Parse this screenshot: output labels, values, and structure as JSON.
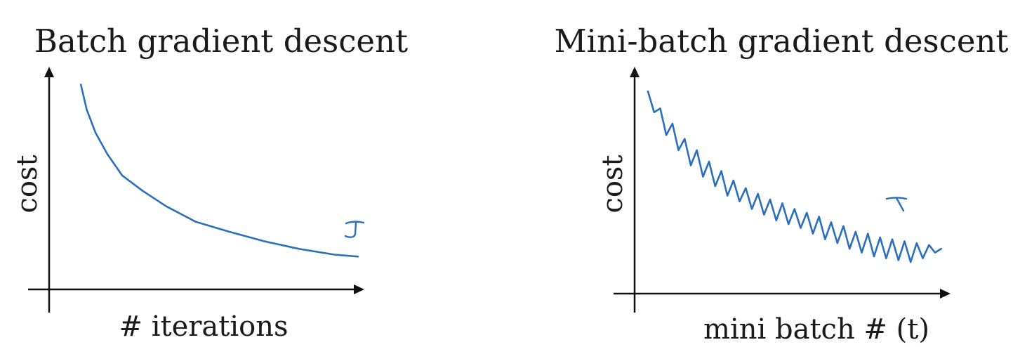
{
  "colors": {
    "curve": "#2a6fbd",
    "axis": "#111111",
    "text": "#1a1a1a"
  },
  "chart_data": [
    {
      "type": "line",
      "title": "Batch gradient descent",
      "xlabel": "# iterations",
      "ylabel": "cost",
      "xlim": [
        0,
        1
      ],
      "ylim": [
        0,
        1
      ],
      "grid": false,
      "annotation": "J",
      "series": [
        {
          "name": "J",
          "x": [
            0.06,
            0.08,
            0.11,
            0.15,
            0.2,
            0.27,
            0.35,
            0.45,
            0.56,
            0.68,
            0.8,
            0.92,
            1.0
          ],
          "y": [
            0.98,
            0.85,
            0.73,
            0.62,
            0.51,
            0.43,
            0.35,
            0.27,
            0.22,
            0.17,
            0.13,
            0.1,
            0.09
          ]
        }
      ]
    },
    {
      "type": "line",
      "title": "Mini-batch gradient descent",
      "xlabel": "mini batch # (t)",
      "ylabel": "cost",
      "xlim": [
        0,
        1
      ],
      "ylim": [
        0,
        1
      ],
      "grid": false,
      "annotation": "J",
      "series": [
        {
          "name": "J",
          "x": [
            0.03,
            0.05,
            0.07,
            0.09,
            0.11,
            0.13,
            0.15,
            0.17,
            0.19,
            0.21,
            0.23,
            0.25,
            0.27,
            0.29,
            0.31,
            0.33,
            0.35,
            0.37,
            0.39,
            0.41,
            0.43,
            0.45,
            0.47,
            0.49,
            0.51,
            0.53,
            0.55,
            0.57,
            0.59,
            0.61,
            0.63,
            0.65,
            0.67,
            0.69,
            0.71,
            0.73,
            0.75,
            0.77,
            0.79,
            0.81,
            0.83,
            0.85,
            0.87,
            0.89,
            0.91,
            0.93,
            0.95,
            0.97,
            0.99
          ],
          "y": [
            0.97,
            0.86,
            0.88,
            0.74,
            0.8,
            0.66,
            0.72,
            0.58,
            0.66,
            0.52,
            0.6,
            0.47,
            0.55,
            0.42,
            0.5,
            0.39,
            0.46,
            0.35,
            0.43,
            0.32,
            0.4,
            0.29,
            0.38,
            0.27,
            0.35,
            0.25,
            0.33,
            0.22,
            0.31,
            0.19,
            0.28,
            0.17,
            0.26,
            0.14,
            0.23,
            0.12,
            0.22,
            0.1,
            0.2,
            0.09,
            0.19,
            0.08,
            0.18,
            0.07,
            0.17,
            0.09,
            0.16,
            0.12,
            0.14
          ]
        }
      ]
    }
  ]
}
